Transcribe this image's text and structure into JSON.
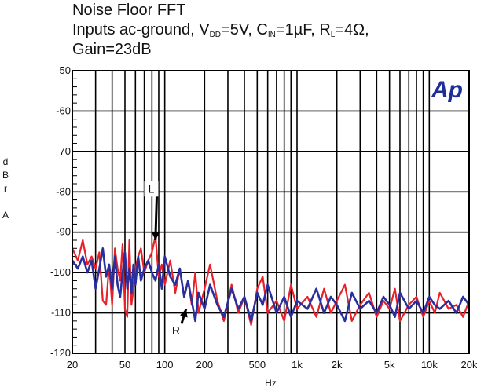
{
  "chart_data": {
    "type": "line",
    "title": "Noise Floor FFT",
    "subtitle": {
      "line1_prefix": "Inputs ac-ground, V",
      "vdd_sub": "DD",
      "vdd_val": "=5V, C",
      "cin_sub": "IN",
      "cin_val": "=1µF, R",
      "rl_sub": "L",
      "rl_val": "=4Ω,",
      "line2": "Gain=23dB"
    },
    "xlabel": "Hz",
    "ylabel": [
      "d",
      "B",
      "r",
      "",
      "A"
    ],
    "x_scale": "log",
    "xlim": [
      20,
      20000
    ],
    "ylim": [
      -120,
      -50
    ],
    "grid": true,
    "x_ticks": [
      {
        "value": 20,
        "label": "20"
      },
      {
        "value": 50,
        "label": "50"
      },
      {
        "value": 100,
        "label": "100"
      },
      {
        "value": 200,
        "label": "200"
      },
      {
        "value": 500,
        "label": "500"
      },
      {
        "value": 1000,
        "label": "1k"
      },
      {
        "value": 2000,
        "label": "2k"
      },
      {
        "value": 5000,
        "label": "5k"
      },
      {
        "value": 10000,
        "label": "10k"
      },
      {
        "value": 20000,
        "label": "20k"
      }
    ],
    "y_ticks": [
      {
        "value": -50,
        "label": "-50"
      },
      {
        "value": -60,
        "label": "-60"
      },
      {
        "value": -70,
        "label": "-70"
      },
      {
        "value": -80,
        "label": "-80"
      },
      {
        "value": -90,
        "label": "-90"
      },
      {
        "value": -100,
        "label": "-100"
      },
      {
        "value": -110,
        "label": "-110"
      },
      {
        "value": -120,
        "label": "-120"
      }
    ],
    "series": [
      {
        "color": "#e8202a",
        "x": [
          20,
          22,
          24,
          26,
          28,
          30,
          32,
          34,
          36,
          38,
          40,
          42,
          44,
          46,
          48,
          50,
          52,
          54,
          56,
          58,
          60,
          63,
          66,
          70,
          75,
          80,
          85,
          90,
          95,
          100,
          110,
          120,
          130,
          140,
          150,
          160,
          170,
          180,
          200,
          220,
          250,
          280,
          320,
          360,
          400,
          450,
          500,
          550,
          600,
          700,
          800,
          900,
          1000,
          1200,
          1400,
          1600,
          1800,
          2000,
          2300,
          2600,
          3000,
          3500,
          4000,
          4500,
          5000,
          5500,
          6000,
          7000,
          8000,
          9000,
          10000,
          11000,
          12000,
          14000,
          16000,
          18000,
          20000
        ],
        "values": [
          -94,
          -97,
          -92,
          -98,
          -96,
          -99,
          -95,
          -107,
          -108,
          -98,
          -108,
          -94,
          -99,
          -102,
          -93,
          -109,
          -111,
          -92,
          -108,
          -104,
          -99,
          -96,
          -94,
          -100,
          -97,
          -95,
          -91,
          -101,
          -98,
          -103,
          -97,
          -105,
          -99,
          -106,
          -102,
          -108,
          -100,
          -110,
          -104,
          -98,
          -107,
          -112,
          -103,
          -110,
          -106,
          -113,
          -104,
          -101,
          -110,
          -107,
          -112,
          -103,
          -109,
          -106,
          -111,
          -104,
          -110,
          -107,
          -103,
          -112,
          -108,
          -105,
          -111,
          -107,
          -109,
          -104,
          -112,
          -108,
          -106,
          -111,
          -107,
          -110,
          -105,
          -109,
          -108,
          -111,
          -107
        ]
      },
      {
        "color": "#2a2f9e",
        "x": [
          20,
          22,
          24,
          26,
          28,
          30,
          32,
          34,
          36,
          38,
          40,
          42,
          44,
          46,
          48,
          50,
          52,
          54,
          56,
          58,
          60,
          63,
          66,
          70,
          75,
          80,
          85,
          90,
          95,
          100,
          110,
          120,
          130,
          140,
          150,
          160,
          170,
          180,
          200,
          220,
          250,
          280,
          320,
          360,
          400,
          450,
          500,
          550,
          600,
          700,
          800,
          900,
          1000,
          1200,
          1400,
          1600,
          1800,
          2000,
          2300,
          2600,
          3000,
          3500,
          4000,
          4500,
          5000,
          5500,
          6000,
          7000,
          8000,
          9000,
          10000,
          11000,
          12000,
          14000,
          16000,
          18000,
          20000
        ],
        "values": [
          -97,
          -99,
          -96,
          -100,
          -97,
          -104,
          -99,
          -94,
          -101,
          -98,
          -104,
          -96,
          -103,
          -106,
          -100,
          -95,
          -104,
          -99,
          -105,
          -98,
          -103,
          -96,
          -102,
          -99,
          -97,
          -100,
          -102,
          -98,
          -104,
          -96,
          -101,
          -103,
          -99,
          -106,
          -102,
          -107,
          -112,
          -105,
          -109,
          -103,
          -108,
          -111,
          -104,
          -109,
          -106,
          -112,
          -105,
          -108,
          -103,
          -110,
          -106,
          -111,
          -107,
          -109,
          -104,
          -110,
          -106,
          -108,
          -112,
          -105,
          -109,
          -107,
          -110,
          -106,
          -108,
          -111,
          -105,
          -109,
          -107,
          -110,
          -106,
          -108,
          -109,
          -107,
          -110,
          -106,
          -108
        ]
      }
    ],
    "annotations": [
      {
        "text": "L",
        "x": 78,
        "y": -80,
        "arrow_to": [
          85,
          -92
        ]
      },
      {
        "text": "R",
        "x": 120,
        "y": -115,
        "arrow_to": [
          145,
          -109
        ]
      }
    ],
    "logo": "Ap"
  }
}
